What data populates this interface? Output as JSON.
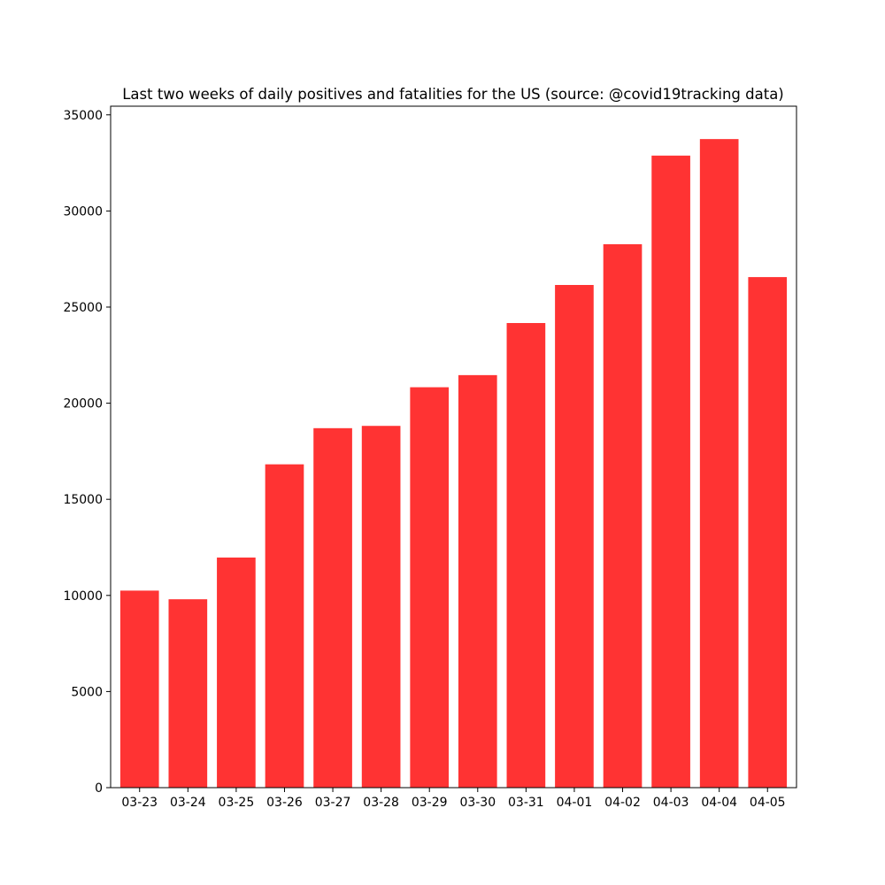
{
  "chart_data": {
    "type": "bar",
    "title": "Last two weeks of daily positives and fatalities for the US (source: @covid19tracking data)",
    "xlabel": "",
    "ylabel": "",
    "categories": [
      "03-23",
      "03-24",
      "03-25",
      "03-26",
      "03-27",
      "03-28",
      "03-29",
      "03-30",
      "03-31",
      "04-01",
      "04-02",
      "04-03",
      "04-04",
      "04-05"
    ],
    "values": [
      10250,
      9800,
      11970,
      16820,
      18700,
      18820,
      20830,
      21460,
      24170,
      26150,
      28270,
      32880,
      33740,
      26560
    ],
    "ylim": [
      0,
      35450
    ],
    "yticks": [
      0,
      5000,
      10000,
      15000,
      20000,
      25000,
      30000,
      35000
    ],
    "bar_color": "#ff3333",
    "grid": false,
    "legend": "none"
  }
}
